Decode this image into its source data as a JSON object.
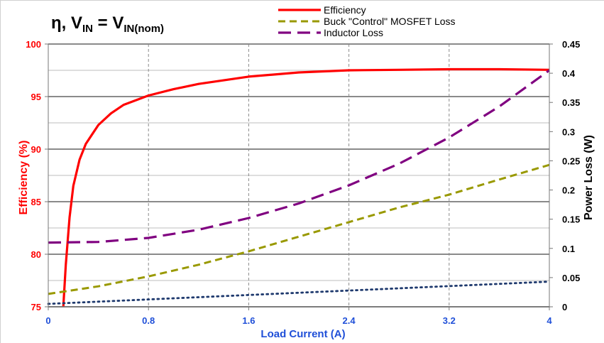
{
  "chart_data": {
    "type": "line",
    "title_main": "η,  V",
    "title_sub1": "IN",
    "title_eq": " = V",
    "title_sub2": "IN(nom)",
    "xlabel": "Load Current (A)",
    "ylabel_left": "Efficiency (%)",
    "ylabel_right": "Power Loss (W)",
    "xlim": [
      0,
      4
    ],
    "ylim_left": [
      75,
      100
    ],
    "ylim_right": [
      0,
      0.45
    ],
    "x_ticks": [
      "0",
      "0.8",
      "1.6",
      "2.4",
      "3.2",
      "4"
    ],
    "x_tick_values": [
      0,
      0.8,
      1.6,
      2.4,
      3.2,
      4
    ],
    "y_left_ticks": [
      "75",
      "80",
      "85",
      "90",
      "95",
      "100"
    ],
    "y_left_tick_values": [
      75,
      80,
      85,
      90,
      95,
      100
    ],
    "y_right_ticks": [
      "0",
      "0.05",
      "0.1",
      "0.15",
      "0.2",
      "0.25",
      "0.3",
      "0.35",
      "0.4",
      "0.45"
    ],
    "y_right_tick_values": [
      0,
      0.05,
      0.1,
      0.15,
      0.2,
      0.25,
      0.3,
      0.35,
      0.4,
      0.45
    ],
    "grid": true,
    "legend_position": "top-right",
    "series": [
      {
        "name": "Efficiency",
        "axis": "left",
        "color": "#ff0000",
        "style": "solid",
        "x": [
          0.12,
          0.14,
          0.17,
          0.2,
          0.25,
          0.3,
          0.4,
          0.5,
          0.6,
          0.8,
          1.0,
          1.2,
          1.6,
          2.0,
          2.4,
          2.8,
          3.2,
          3.6,
          4.0
        ],
        "y": [
          75,
          79,
          83.5,
          86.5,
          89,
          90.5,
          92.3,
          93.4,
          94.2,
          95.1,
          95.7,
          96.2,
          96.9,
          97.3,
          97.5,
          97.55,
          97.6,
          97.6,
          97.55
        ]
      },
      {
        "name": "Buck \"Control\" MOSFET Loss",
        "axis": "right",
        "color": "#999900",
        "style": "dashed",
        "x": [
          0,
          0.4,
          0.8,
          1.2,
          1.6,
          2.0,
          2.4,
          2.8,
          3.2,
          3.6,
          4.0
        ],
        "y": [
          0.022,
          0.035,
          0.052,
          0.072,
          0.095,
          0.12,
          0.145,
          0.17,
          0.192,
          0.218,
          0.243
        ]
      },
      {
        "name": "Inductor Loss",
        "axis": "right",
        "color": "#800080",
        "style": "longdash",
        "x": [
          0,
          0.4,
          0.8,
          1.2,
          1.6,
          2.0,
          2.4,
          2.8,
          3.2,
          3.6,
          4.0
        ],
        "y": [
          0.11,
          0.111,
          0.118,
          0.132,
          0.152,
          0.177,
          0.208,
          0.245,
          0.29,
          0.343,
          0.405
        ]
      },
      {
        "name": "",
        "axis": "right",
        "color": "#1f3a6e",
        "style": "dotted",
        "x": [
          0,
          4.0
        ],
        "y": [
          0.005,
          0.043
        ]
      }
    ]
  }
}
